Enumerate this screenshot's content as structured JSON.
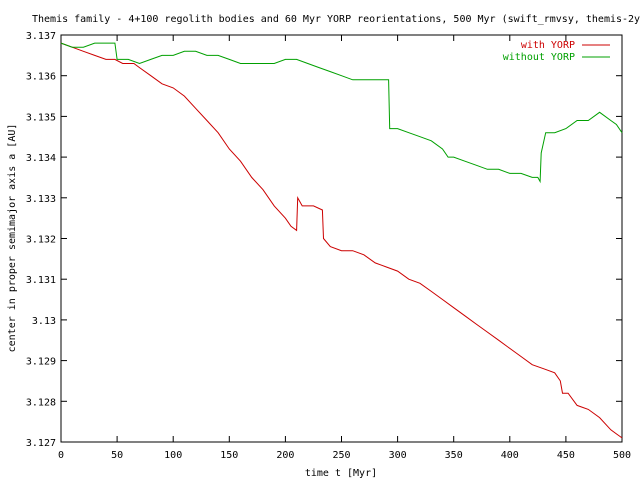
{
  "chart_data": {
    "type": "line",
    "title": "Themis family - 4+100 regolith bodies and 60 Myr YORP reorientations, 500 Myr (swift_rmvsy, themis-2y",
    "xlabel": "time t [Myr]",
    "ylabel": "center in proper semimajor axis a [AU]",
    "xlim": [
      0,
      500
    ],
    "ylim": [
      3.127,
      3.137
    ],
    "xticks": [
      0,
      50,
      100,
      150,
      200,
      250,
      300,
      350,
      400,
      450,
      500
    ],
    "yticks": [
      3.127,
      3.128,
      3.129,
      3.13,
      3.131,
      3.132,
      3.133,
      3.134,
      3.135,
      3.136,
      3.137
    ],
    "ytick_labels": [
      "3.127",
      "3.128",
      "3.129",
      "3.13",
      "3.131",
      "3.132",
      "3.133",
      "3.134",
      "3.135",
      "3.136",
      "3.137"
    ],
    "grid": false,
    "legend": "top-right",
    "series": [
      {
        "name": "with YORP",
        "color": "#cc0000",
        "points": [
          [
            0,
            3.1368
          ],
          [
            10,
            3.1367
          ],
          [
            20,
            3.1366
          ],
          [
            30,
            3.1365
          ],
          [
            40,
            3.1364
          ],
          [
            48,
            3.1364
          ],
          [
            55,
            3.1363
          ],
          [
            65,
            3.1363
          ],
          [
            70,
            3.1362
          ],
          [
            80,
            3.136
          ],
          [
            90,
            3.1358
          ],
          [
            100,
            3.1357
          ],
          [
            110,
            3.1355
          ],
          [
            120,
            3.1352
          ],
          [
            130,
            3.1349
          ],
          [
            140,
            3.1346
          ],
          [
            150,
            3.1342
          ],
          [
            160,
            3.1339
          ],
          [
            170,
            3.1335
          ],
          [
            180,
            3.1332
          ],
          [
            190,
            3.1328
          ],
          [
            200,
            3.1325
          ],
          [
            205,
            3.1323
          ],
          [
            210,
            3.1322
          ],
          [
            211,
            3.133
          ],
          [
            215,
            3.1328
          ],
          [
            225,
            3.1328
          ],
          [
            233,
            3.1327
          ],
          [
            234,
            3.132
          ],
          [
            240,
            3.1318
          ],
          [
            250,
            3.1317
          ],
          [
            260,
            3.1317
          ],
          [
            270,
            3.1316
          ],
          [
            280,
            3.1314
          ],
          [
            290,
            3.1313
          ],
          [
            300,
            3.1312
          ],
          [
            310,
            3.131
          ],
          [
            320,
            3.1309
          ],
          [
            330,
            3.1307
          ],
          [
            340,
            3.1305
          ],
          [
            350,
            3.1303
          ],
          [
            360,
            3.1301
          ],
          [
            370,
            3.1299
          ],
          [
            380,
            3.1297
          ],
          [
            390,
            3.1295
          ],
          [
            400,
            3.1293
          ],
          [
            410,
            3.1291
          ],
          [
            420,
            3.1289
          ],
          [
            430,
            3.1288
          ],
          [
            440,
            3.1287
          ],
          [
            445,
            3.1285
          ],
          [
            447,
            3.1282
          ],
          [
            452,
            3.1282
          ],
          [
            460,
            3.1279
          ],
          [
            470,
            3.1278
          ],
          [
            480,
            3.1276
          ],
          [
            490,
            3.1273
          ],
          [
            495,
            3.1272
          ],
          [
            500,
            3.1271
          ]
        ]
      },
      {
        "name": "without YORP",
        "color": "#00a000",
        "points": [
          [
            0,
            3.1368
          ],
          [
            10,
            3.1367
          ],
          [
            20,
            3.1367
          ],
          [
            30,
            3.1368
          ],
          [
            40,
            3.1368
          ],
          [
            48,
            3.1368
          ],
          [
            50,
            3.1364
          ],
          [
            60,
            3.1364
          ],
          [
            70,
            3.1363
          ],
          [
            80,
            3.1364
          ],
          [
            90,
            3.1365
          ],
          [
            100,
            3.1365
          ],
          [
            110,
            3.1366
          ],
          [
            120,
            3.1366
          ],
          [
            130,
            3.1365
          ],
          [
            140,
            3.1365
          ],
          [
            150,
            3.1364
          ],
          [
            160,
            3.1363
          ],
          [
            170,
            3.1363
          ],
          [
            180,
            3.1363
          ],
          [
            190,
            3.1363
          ],
          [
            200,
            3.1364
          ],
          [
            210,
            3.1364
          ],
          [
            220,
            3.1363
          ],
          [
            230,
            3.1362
          ],
          [
            240,
            3.1361
          ],
          [
            250,
            3.136
          ],
          [
            260,
            3.1359
          ],
          [
            270,
            3.1359
          ],
          [
            280,
            3.1359
          ],
          [
            292,
            3.1359
          ],
          [
            293,
            3.1347
          ],
          [
            300,
            3.1347
          ],
          [
            310,
            3.1346
          ],
          [
            320,
            3.1345
          ],
          [
            330,
            3.1344
          ],
          [
            340,
            3.1342
          ],
          [
            345,
            3.134
          ],
          [
            350,
            3.134
          ],
          [
            360,
            3.1339
          ],
          [
            370,
            3.1338
          ],
          [
            380,
            3.1337
          ],
          [
            390,
            3.1337
          ],
          [
            400,
            3.1336
          ],
          [
            410,
            3.1336
          ],
          [
            420,
            3.1335
          ],
          [
            425,
            3.1335
          ],
          [
            427,
            3.1334
          ],
          [
            428,
            3.1341
          ],
          [
            432,
            3.1346
          ],
          [
            440,
            3.1346
          ],
          [
            450,
            3.1347
          ],
          [
            460,
            3.1349
          ],
          [
            470,
            3.1349
          ],
          [
            480,
            3.1351
          ],
          [
            490,
            3.1349
          ],
          [
            495,
            3.1348
          ],
          [
            500,
            3.1346
          ]
        ]
      }
    ]
  }
}
